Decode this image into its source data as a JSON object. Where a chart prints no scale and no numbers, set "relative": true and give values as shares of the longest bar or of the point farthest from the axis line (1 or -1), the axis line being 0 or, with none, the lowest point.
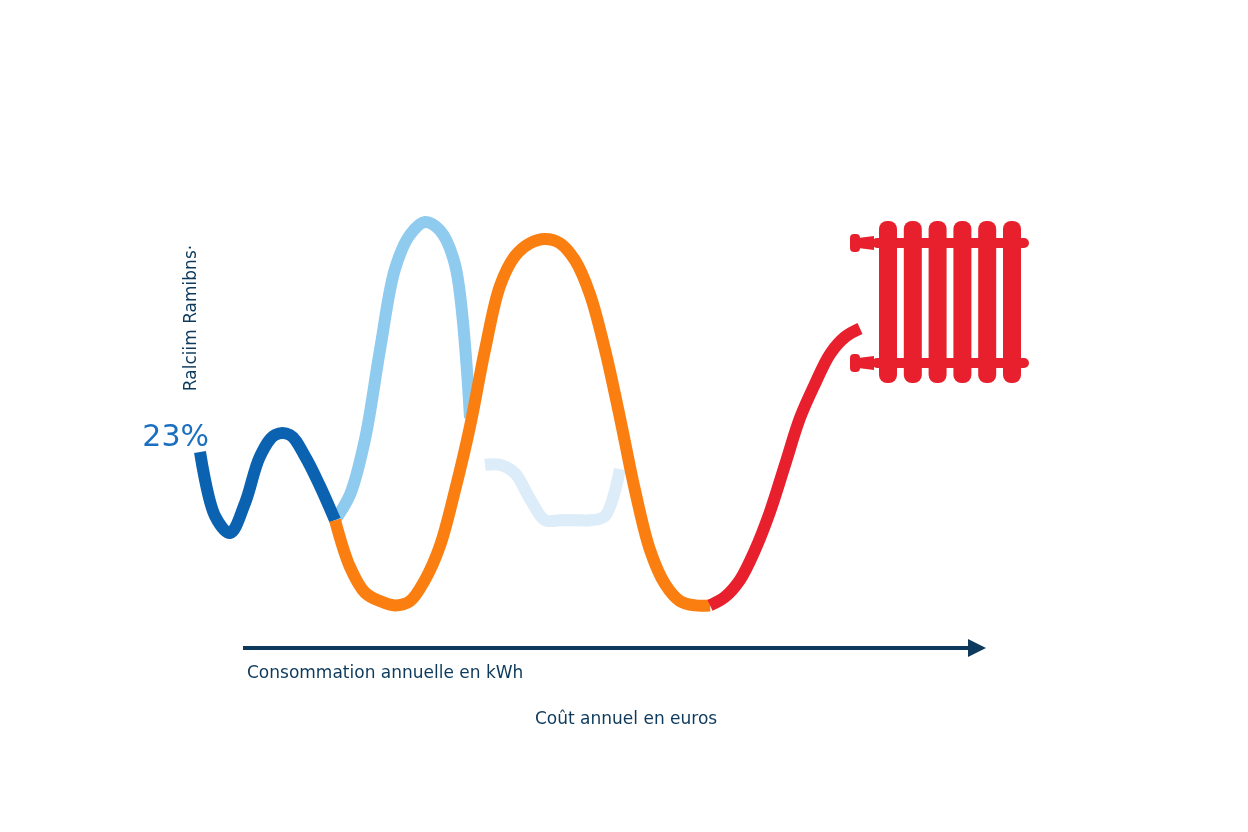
{
  "chart_data": {
    "type": "line",
    "relative": true,
    "ylabel": "Ralciim Ramibns·",
    "xlabel": "Consommation annuelle en kWh",
    "annotations": [
      "23%",
      "Coût annuel en euros"
    ],
    "line_style": "solid",
    "categories": [
      null,
      null,
      null,
      null,
      null,
      null,
      null,
      null,
      null,
      null,
      null,
      null,
      null,
      null,
      null,
      null,
      null,
      null,
      null,
      null,
      null,
      null,
      null,
      null,
      null,
      null,
      null,
      null,
      null,
      null,
      null,
      null,
      null,
      null,
      null,
      null,
      null,
      null,
      null,
      null,
      null,
      null,
      null,
      null,
      null
    ],
    "series": [
      {
        "color": "#dcecf8",
        "values": [
          null,
          null,
          null,
          null,
          null,
          null,
          null,
          null,
          null,
          null,
          null,
          null,
          null,
          null,
          null,
          null,
          null,
          null,
          null,
          0.43,
          0.43,
          0.41,
          0.35,
          0.3,
          0.3,
          0.3,
          0.3,
          0.31,
          0.42,
          null,
          null,
          null,
          null,
          null,
          null,
          null,
          null,
          null,
          null,
          null,
          null,
          null,
          null,
          null,
          null
        ]
      },
      {
        "color": "#8fcbef",
        "values": [
          null,
          null,
          null,
          null,
          null,
          null,
          null,
          null,
          null,
          0.3,
          0.36,
          0.49,
          0.7,
          0.89,
          0.97,
          1,
          0.98,
          0.9,
          0.54,
          null,
          null,
          null,
          null,
          null,
          null,
          null,
          null,
          null,
          null,
          null,
          null,
          null,
          null,
          null,
          null,
          null,
          null,
          null,
          null,
          null,
          null,
          null,
          null,
          null,
          null
        ]
      },
      {
        "color": "#0b62b0",
        "values": [
          0.46,
          0.31,
          0.27,
          0.34,
          0.45,
          0.5,
          0.5,
          0.45,
          0.38,
          0.3,
          null,
          null,
          null,
          null,
          null,
          null,
          null,
          null,
          null,
          null,
          null,
          null,
          null,
          null,
          null,
          null,
          null,
          null,
          null,
          null,
          null,
          null,
          null,
          null,
          null,
          null,
          null,
          null,
          null,
          null,
          null,
          null,
          null,
          null,
          null
        ]
      },
      {
        "color": "#fb7e10",
        "values": [
          null,
          null,
          null,
          null,
          null,
          null,
          null,
          null,
          null,
          0.3,
          0.19,
          0.13,
          0.11,
          0.1,
          0.11,
          0.16,
          0.24,
          0.37,
          0.52,
          0.7,
          0.85,
          0.92,
          0.95,
          0.96,
          0.95,
          0.91,
          0.83,
          0.7,
          0.54,
          0.37,
          0.23,
          0.15,
          0.11,
          0.1,
          0.1,
          null,
          null,
          null,
          null,
          null,
          null,
          null,
          null,
          null,
          null
        ]
      },
      {
        "color": "#e8202e",
        "values": [
          null,
          null,
          null,
          null,
          null,
          null,
          null,
          null,
          null,
          null,
          null,
          null,
          null,
          null,
          null,
          null,
          null,
          null,
          null,
          null,
          null,
          null,
          null,
          null,
          null,
          null,
          null,
          null,
          null,
          null,
          null,
          null,
          null,
          null,
          0.1,
          0.12,
          0.16,
          0.23,
          0.32,
          0.43,
          0.54,
          0.62,
          0.69,
          0.73,
          0.75
        ]
      }
    ]
  }
}
